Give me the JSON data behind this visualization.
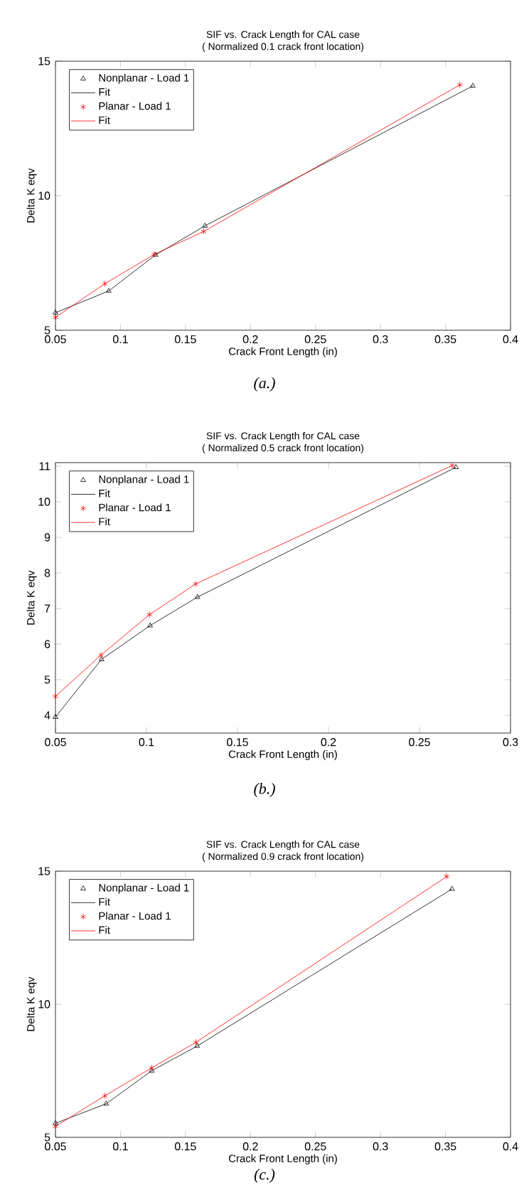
{
  "chart_data": [
    {
      "type": "line",
      "title": "SIF vs. Crack Length for CAL case",
      "subtitle": "( Normalized 0.1 crack front location)",
      "xlabel": "Crack Front Length (in)",
      "ylabel": "Delta K eqv",
      "annotations": [
        "(a.)"
      ],
      "xlim": [
        0.05,
        0.4
      ],
      "xticks": [
        0.05,
        0.1,
        0.15,
        0.2,
        0.25,
        0.3,
        0.35,
        0.4
      ],
      "ylim": [
        5,
        15
      ],
      "yticks": [
        5,
        10,
        15
      ],
      "grid": false,
      "legend": "top left",
      "series": [
        {
          "name": "Nonplanar - Load 1",
          "type": "scatter",
          "marker": "triangle",
          "color": "#000000",
          "x": [
            0.05,
            0.091,
            0.127,
            0.165,
            0.371
          ],
          "values": [
            5.65,
            6.46,
            7.8,
            8.88,
            14.08
          ]
        },
        {
          "name": "Fit",
          "type": "line",
          "color": "#000000",
          "x": [
            0.05,
            0.091,
            0.127,
            0.165,
            0.371
          ],
          "values": [
            5.65,
            6.46,
            7.8,
            8.88,
            14.08
          ]
        },
        {
          "name": "Planar - Load 1",
          "type": "scatter",
          "marker": "cross",
          "color": "#ff0000",
          "x": [
            0.05,
            0.088,
            0.126,
            0.164,
            0.361
          ],
          "values": [
            5.48,
            6.73,
            7.82,
            8.67,
            14.12
          ]
        },
        {
          "name": "Fit",
          "type": "line",
          "color": "#ff0000",
          "x": [
            0.05,
            0.088,
            0.126,
            0.164,
            0.361
          ],
          "values": [
            5.48,
            6.73,
            7.82,
            8.67,
            14.12
          ]
        }
      ]
    },
    {
      "type": "line",
      "title": "SIF vs. Crack Length for CAL case",
      "subtitle": "( Normalized 0.5 crack front location)",
      "xlabel": "Crack Front Length (in)",
      "ylabel": "Delta K eqv",
      "annotations": [
        "(b.)"
      ],
      "xlim": [
        0.05,
        0.3
      ],
      "xticks": [
        0.05,
        0.1,
        0.15,
        0.2,
        0.25,
        0.3
      ],
      "ylim": [
        3.5,
        11.1
      ],
      "yticks": [
        4,
        5,
        6,
        7,
        8,
        9,
        10,
        11
      ],
      "grid": false,
      "legend": "top left",
      "series": [
        {
          "name": "Nonplanar - Load 1",
          "type": "scatter",
          "marker": "triangle",
          "color": "#000000",
          "x": [
            0.05,
            0.0753,
            0.102,
            0.128,
            0.27
          ],
          "values": [
            3.95,
            5.57,
            6.52,
            7.32,
            10.97
          ]
        },
        {
          "name": "Fit",
          "type": "line",
          "color": "#000000",
          "x": [
            0.05,
            0.0753,
            0.102,
            0.128,
            0.27
          ],
          "values": [
            3.95,
            5.57,
            6.52,
            7.32,
            10.97
          ]
        },
        {
          "name": "Planar - Load 1",
          "type": "scatter",
          "marker": "cross",
          "color": "#ff0000",
          "x": [
            0.05,
            0.075,
            0.1017,
            0.127,
            0.268
          ],
          "values": [
            4.53,
            5.69,
            6.83,
            7.69,
            11.02
          ]
        },
        {
          "name": "Fit",
          "type": "line",
          "color": "#ff0000",
          "x": [
            0.05,
            0.075,
            0.1017,
            0.127,
            0.268
          ],
          "values": [
            4.53,
            5.69,
            6.83,
            7.69,
            11.02
          ]
        }
      ]
    },
    {
      "type": "line",
      "title": "SIF vs. Crack Length for CAL case",
      "subtitle": "( Normalized 0.9 crack front location)",
      "xlabel": "Crack Front Length (in)",
      "ylabel": "Delta K eqv",
      "annotations": [
        "(c.)"
      ],
      "xlim": [
        0.05,
        0.4
      ],
      "xticks": [
        0.05,
        0.1,
        0.15,
        0.2,
        0.25,
        0.3,
        0.35,
        0.4
      ],
      "ylim": [
        5,
        15
      ],
      "yticks": [
        5,
        10,
        15
      ],
      "grid": false,
      "legend": "top left",
      "series": [
        {
          "name": "Nonplanar - Load 1",
          "type": "scatter",
          "marker": "triangle",
          "color": "#000000",
          "x": [
            0.05,
            0.089,
            0.124,
            0.159,
            0.355
          ],
          "values": [
            5.53,
            6.26,
            7.5,
            8.43,
            14.33
          ]
        },
        {
          "name": "Fit",
          "type": "line",
          "color": "#000000",
          "x": [
            0.05,
            0.089,
            0.124,
            0.159,
            0.355
          ],
          "values": [
            5.53,
            6.26,
            7.5,
            8.43,
            14.33
          ]
        },
        {
          "name": "Planar - Load 1",
          "type": "scatter",
          "marker": "cross",
          "color": "#ff0000",
          "x": [
            0.05,
            0.088,
            0.124,
            0.158,
            0.351
          ],
          "values": [
            5.41,
            6.56,
            7.61,
            8.57,
            14.8
          ]
        },
        {
          "name": "Fit",
          "type": "line",
          "color": "#ff0000",
          "x": [
            0.05,
            0.088,
            0.124,
            0.158,
            0.351
          ],
          "values": [
            5.41,
            6.56,
            7.61,
            8.57,
            14.8
          ]
        }
      ]
    }
  ]
}
